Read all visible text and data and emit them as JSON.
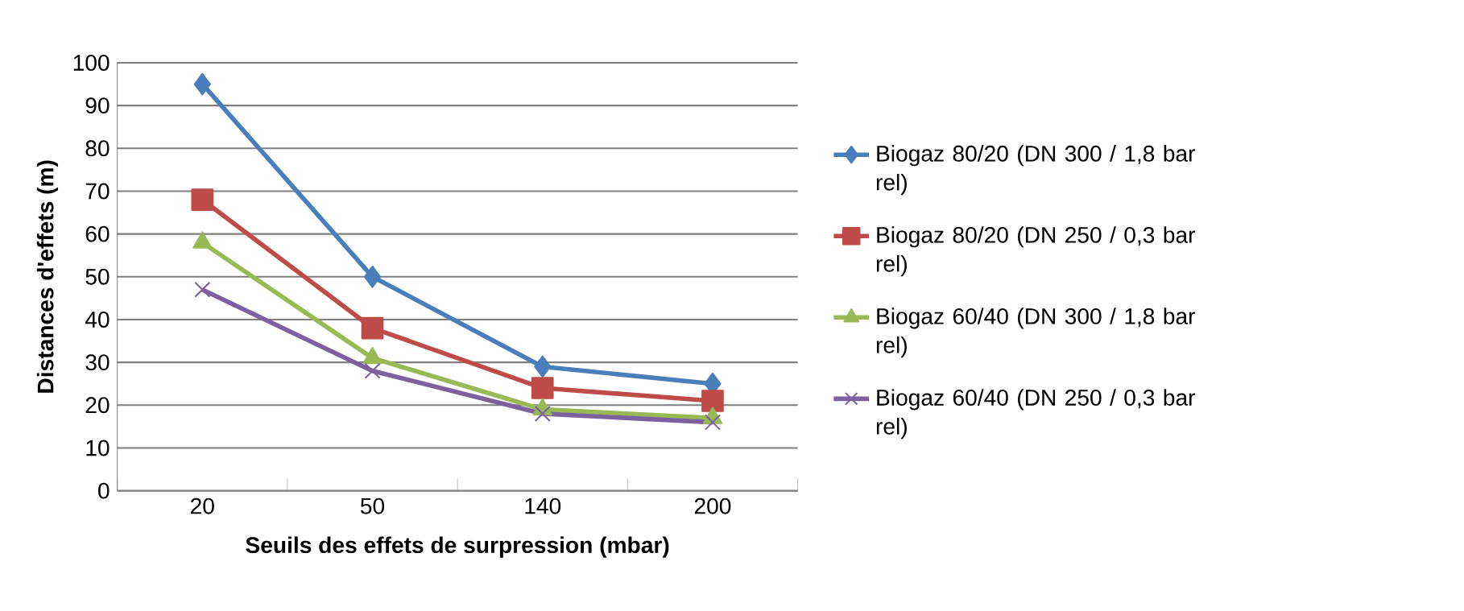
{
  "chart_data": {
    "type": "line",
    "xlabel": "Seuils des effets de surpression (mbar)",
    "ylabel": "Distances d'effets (m)",
    "categories": [
      "20",
      "50",
      "140",
      "200"
    ],
    "series": [
      {
        "name": "Biogaz 80/20 (DN 300 / 1,8 bar rel)",
        "color": "#4a7ebb",
        "marker": "diamond",
        "values": [
          95,
          50,
          29,
          25
        ]
      },
      {
        "name": "Biogaz 80/20 (DN 250 / 0,3 bar rel)",
        "color": "#be4b48",
        "marker": "square",
        "values": [
          68,
          38,
          24,
          21
        ]
      },
      {
        "name": "Biogaz 60/40 (DN 300 / 1,8 bar rel)",
        "color": "#98b954",
        "marker": "triangle",
        "values": [
          58,
          31,
          19,
          17
        ]
      },
      {
        "name": "Biogaz 60/40 (DN 250 / 0,3 bar rel)",
        "color": "#7d60a0",
        "marker": "cross",
        "values": [
          47,
          28,
          18,
          16
        ]
      }
    ],
    "ylim": [
      0,
      100
    ],
    "yticks": [
      0,
      10,
      20,
      30,
      40,
      50,
      60,
      70,
      80,
      90,
      100
    ],
    "grid": "y",
    "legend": "right",
    "line_style": "solid"
  }
}
